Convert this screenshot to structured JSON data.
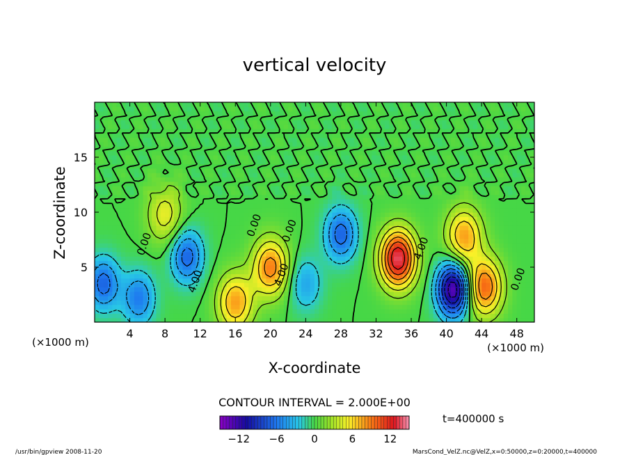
{
  "chart_data": {
    "type": "heatmap",
    "title": "vertical velocity",
    "xlabel": "X-coordinate",
    "ylabel": "Z-coordinate",
    "x_unit_left": "(×1000 m)",
    "x_unit_right": "(×1000 m)",
    "xlim": [
      0,
      50
    ],
    "ylim": [
      0,
      20
    ],
    "x_ticks": [
      4,
      8,
      12,
      16,
      20,
      24,
      28,
      32,
      36,
      40,
      44,
      48
    ],
    "x_tick_labels": [
      "4",
      "8",
      "12",
      "16",
      "20",
      "24",
      "28",
      "32",
      "36",
      "40",
      "44",
      "48"
    ],
    "y_ticks": [
      5,
      10,
      15
    ],
    "y_tick_labels": [
      "5",
      "10",
      "15"
    ],
    "contour_interval_text": "CONTOUR INTERVAL = 2.000E+00",
    "time_text": "t=400000 s",
    "colorbar": {
      "min": -15,
      "max": 15,
      "tick_values": [
        -12,
        -6,
        0,
        6,
        12
      ],
      "tick_labels": [
        "−12",
        "−6",
        "0",
        "6",
        "12"
      ]
    },
    "contour_labels": [
      {
        "text": "0.00",
        "x": 18.5,
        "z": 8.7
      },
      {
        "text": "0.00",
        "x": 22.5,
        "z": 8.2
      },
      {
        "text": "0.00",
        "x": 6.0,
        "z": 7.0
      },
      {
        "text": "4.00",
        "x": 11.8,
        "z": 3.6
      },
      {
        "text": "4.00",
        "x": 21.6,
        "z": 4.2
      },
      {
        "text": "4.00",
        "x": 37.5,
        "z": 6.6
      },
      {
        "text": "0.00",
        "x": 48.5,
        "z": 3.8
      }
    ],
    "features": [
      {
        "kind": "updraft",
        "x": 20.0,
        "z": 5.0,
        "peak": 9
      },
      {
        "kind": "updraft",
        "x": 16.0,
        "z": 1.8,
        "peak": 8
      },
      {
        "kind": "updraft",
        "x": 34.5,
        "z": 5.8,
        "peak": 14
      },
      {
        "kind": "updraft",
        "x": 44.3,
        "z": 3.2,
        "peak": 10
      },
      {
        "kind": "updraft",
        "x": 42.0,
        "z": 7.8,
        "peak": 8
      },
      {
        "kind": "updraft",
        "x": 8.0,
        "z": 9.8,
        "peak": 5
      },
      {
        "kind": "downdraft",
        "x": 40.8,
        "z": 3.0,
        "peak": -14
      },
      {
        "kind": "downdraft",
        "x": 10.5,
        "z": 6.0,
        "peak": -7
      },
      {
        "kind": "downdraft",
        "x": 1.0,
        "z": 3.5,
        "peak": -7
      },
      {
        "kind": "downdraft",
        "x": 28.0,
        "z": 8.0,
        "peak": -7
      },
      {
        "kind": "downdraft",
        "x": 5.0,
        "z": 2.2,
        "peak": -6
      },
      {
        "kind": "downdraft",
        "x": 24.0,
        "z": 3.5,
        "peak": -4
      }
    ]
  },
  "footer": {
    "left": "/usr/bin/gpview   2008-11-20",
    "right": "MarsCond_VelZ.nc@VelZ,x=0:50000,z=0:20000,t=400000"
  }
}
